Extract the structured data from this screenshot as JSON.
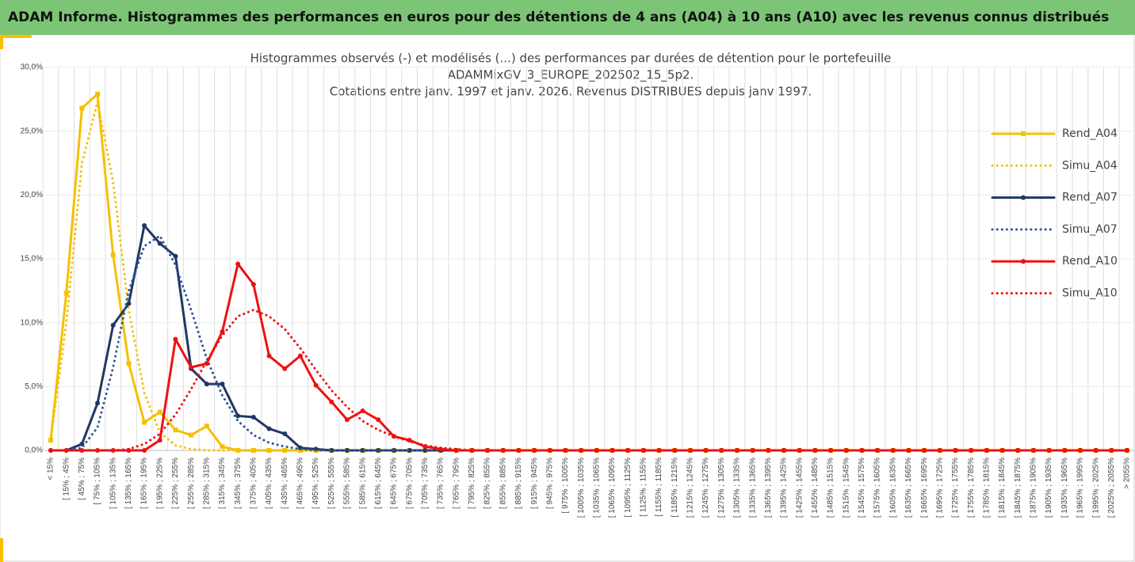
{
  "header": {
    "title": "ADAM Informe. Histogrammes des performances en euros pour des détentions de 4 ans (A04) à 10 ans (A10) avec les revenus connus distribués"
  },
  "chart_data": {
    "type": "line",
    "title": [
      "Histogrammes observés (-) et modélisés (...) des performances par durées de détention pour le portefeuille",
      "ADAMMixGV_3_EUROPE_202502_15_5p2.",
      "Cotations entre janv. 1997 et janv. 2026. Revenus DISTRIBUES depuis janv 1997."
    ],
    "categories": [
      "< 15%",
      "[ 15% ; 45%",
      "[ 45% ; 75%",
      "[ 75% ; 105%",
      "[ 105% ; 135%",
      "[ 135% ; 165%",
      "[ 165% ; 195%",
      "[ 195% ; 225%",
      "[ 225% ; 255%",
      "[ 255% ; 285%",
      "[ 285% ; 315%",
      "[ 315% ; 345%",
      "[ 345% ; 375%",
      "[ 375% ; 405%",
      "[ 405% ; 435%",
      "[ 435% ; 465%",
      "[ 465% ; 495%",
      "[ 495% ; 525%",
      "[ 525% ; 555%",
      "[ 555% ; 585%",
      "[ 585% ; 615%",
      "[ 615% ; 645%",
      "[ 645% ; 675%",
      "[ 675% ; 705%",
      "[ 705% ; 735%",
      "[ 735% ; 765%",
      "[ 765% ; 795%",
      "[ 795% ; 825%",
      "[ 825% ; 855%",
      "[ 855% ; 885%",
      "[ 885% ; 915%",
      "[ 915% ; 945%",
      "[ 945% ; 975%",
      "[ 975% ; 1005%",
      "[ 1005% ; 1035%",
      "[ 1035% ; 1065%",
      "[ 1065% ; 1095%",
      "[ 1095% ; 1125%",
      "[ 1125% ; 1155%",
      "[ 1155% ; 1185%",
      "[ 1185% ; 1215%",
      "[ 1215% ; 1245%",
      "[ 1245% ; 1275%",
      "[ 1275% ; 1305%",
      "[ 1305% ; 1335%",
      "[ 1335% ; 1365%",
      "[ 1365% ; 1395%",
      "[ 1395% ; 1425%",
      "[ 1425% ; 1455%",
      "[ 1455% ; 1485%",
      "[ 1485% ; 1515%",
      "[ 1515% ; 1545%",
      "[ 1545% ; 1575%",
      "[ 1575% ; 1605%",
      "[ 1605% ; 1635%",
      "[ 1635% ; 1665%",
      "[ 1665% ; 1695%",
      "[ 1695% ; 1725%",
      "[ 1725% ; 1755%",
      "[ 1755% ; 1785%",
      "[ 1785% ; 1815%",
      "[ 1815% ; 1845%",
      "[ 1845% ; 1875%",
      "[ 1875% ; 1905%",
      "[ 1905% ; 1935%",
      "[ 1935% ; 1965%",
      "[ 1965% ; 1995%",
      "[ 1995% ; 2025%",
      "[ 2025% ; 2055%",
      "> 2055%"
    ],
    "series": [
      {
        "name": "Rend_A04",
        "color": "#f5c000",
        "dotted": false,
        "marker": "square",
        "values": [
          0.8,
          12.3,
          26.8,
          27.9,
          15.3,
          6.8,
          2.2,
          3.0,
          1.6,
          1.2,
          1.9,
          0.3,
          0,
          0,
          0,
          0,
          0,
          0,
          0,
          0,
          0,
          0,
          0,
          0,
          0,
          0,
          0,
          0,
          0,
          0,
          0,
          0,
          0,
          0,
          0,
          0,
          0,
          0,
          0,
          0,
          0,
          0,
          0,
          0,
          0,
          0,
          0,
          0,
          0,
          0,
          0,
          0,
          0,
          0,
          0,
          0,
          0,
          0,
          0,
          0,
          0,
          0,
          0,
          0,
          0,
          0,
          0,
          0,
          0,
          0
        ]
      },
      {
        "name": "Simu_A04",
        "color": "#f5c000",
        "dotted": true,
        "marker": "none",
        "values": [
          0.8,
          10,
          22.5,
          27.3,
          21,
          11,
          4.5,
          1.4,
          0.4,
          0.1,
          0,
          0,
          0,
          0,
          0,
          0,
          0,
          0,
          0,
          0,
          0,
          0,
          0,
          0,
          0,
          0,
          0,
          0,
          0,
          0,
          0,
          0,
          0,
          0,
          0,
          0,
          0,
          0,
          0,
          0,
          0,
          0,
          0,
          0,
          0,
          0,
          0,
          0,
          0,
          0,
          0,
          0,
          0,
          0,
          0,
          0,
          0,
          0,
          0,
          0,
          0,
          0,
          0,
          0,
          0,
          0,
          0,
          0,
          0,
          0
        ]
      },
      {
        "name": "Rend_A07",
        "color": "#1f3864",
        "dotted": false,
        "marker": "circle",
        "values": [
          0,
          0,
          0.5,
          3.7,
          9.8,
          11.5,
          17.6,
          16.2,
          15.2,
          6.4,
          5.2,
          5.2,
          2.7,
          2.6,
          1.7,
          1.3,
          0.2,
          0.1,
          0,
          0,
          0,
          0,
          0,
          0,
          0,
          0,
          0,
          0,
          0,
          0,
          0,
          0,
          0,
          0,
          0,
          0,
          0,
          0,
          0,
          0,
          0,
          0,
          0,
          0,
          0,
          0,
          0,
          0,
          0,
          0,
          0,
          0,
          0,
          0,
          0,
          0,
          0,
          0,
          0,
          0,
          0,
          0,
          0,
          0,
          0,
          0,
          0,
          0,
          0,
          0
        ]
      },
      {
        "name": "Simu_A07",
        "color": "#2f5597",
        "dotted": true,
        "marker": "none",
        "values": [
          0,
          0,
          0.2,
          1.8,
          6.5,
          12.5,
          16.0,
          16.8,
          14.5,
          11,
          7.2,
          4.3,
          2.3,
          1.2,
          0.6,
          0.3,
          0.1,
          0,
          0,
          0,
          0,
          0,
          0,
          0,
          0,
          0,
          0,
          0,
          0,
          0,
          0,
          0,
          0,
          0,
          0,
          0,
          0,
          0,
          0,
          0,
          0,
          0,
          0,
          0,
          0,
          0,
          0,
          0,
          0,
          0,
          0,
          0,
          0,
          0,
          0,
          0,
          0,
          0,
          0,
          0,
          0,
          0,
          0,
          0,
          0,
          0,
          0,
          0,
          0,
          0
        ]
      },
      {
        "name": "Rend_A10",
        "color": "#ee1111",
        "dotted": false,
        "marker": "circle",
        "values": [
          0,
          0,
          0,
          0,
          0,
          0,
          0,
          0.8,
          8.7,
          6.5,
          6.8,
          9.3,
          14.6,
          13.0,
          7.4,
          6.4,
          7.4,
          5.1,
          3.8,
          2.4,
          3.1,
          2.4,
          1.1,
          0.8,
          0.3,
          0.1,
          0,
          0,
          0,
          0,
          0,
          0,
          0,
          0,
          0,
          0,
          0,
          0,
          0,
          0,
          0,
          0,
          0,
          0,
          0,
          0,
          0,
          0,
          0,
          0,
          0,
          0,
          0,
          0,
          0,
          0,
          0,
          0,
          0,
          0,
          0,
          0,
          0,
          0,
          0,
          0,
          0,
          0,
          0,
          0
        ]
      },
      {
        "name": "Simu_A10",
        "color": "#ee1111",
        "dotted": true,
        "marker": "none",
        "values": [
          0,
          0,
          0,
          0,
          0,
          0.1,
          0.5,
          1.3,
          2.8,
          4.8,
          7.0,
          9.0,
          10.5,
          11.0,
          10.5,
          9.5,
          8.0,
          6.3,
          4.7,
          3.4,
          2.3,
          1.6,
          1.1,
          0.7,
          0.4,
          0.2,
          0.1,
          0,
          0,
          0,
          0,
          0,
          0,
          0,
          0,
          0,
          0,
          0,
          0,
          0,
          0,
          0,
          0,
          0,
          0,
          0,
          0,
          0,
          0,
          0,
          0,
          0,
          0,
          0,
          0,
          0,
          0,
          0,
          0,
          0,
          0,
          0,
          0,
          0,
          0,
          0,
          0,
          0,
          0,
          0
        ]
      }
    ],
    "ylim": [
      0,
      30
    ],
    "yticks": [
      {
        "value": 0,
        "label": "0,0%"
      },
      {
        "value": 5,
        "label": "5,0%"
      },
      {
        "value": 10,
        "label": "10,0%"
      },
      {
        "value": 15,
        "label": "15,0%"
      },
      {
        "value": 20,
        "label": "20,0%"
      },
      {
        "value": 25,
        "label": "25,0%"
      },
      {
        "value": 30,
        "label": "30,0%"
      }
    ],
    "grid": true,
    "legend": "right"
  }
}
